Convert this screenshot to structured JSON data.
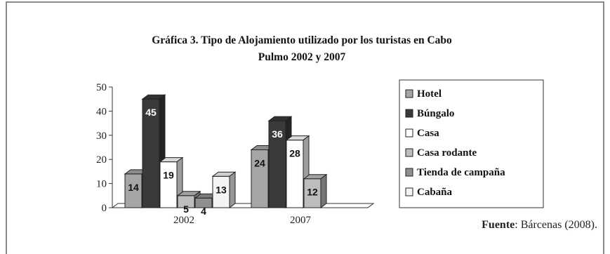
{
  "chart_data": {
    "type": "bar",
    "title_line1": "Gráfica 3. Tipo de Alojamiento utilizado por los turistas en Cabo",
    "title_line2": "Pulmo 2002 y 2007",
    "categories": [
      "2002",
      "2007"
    ],
    "ylim": [
      0,
      50
    ],
    "yticks": [
      0,
      10,
      20,
      30,
      40,
      50
    ],
    "grid": false,
    "legend_position": "right",
    "series": [
      {
        "name": "Hotel",
        "values": [
          14,
          24
        ],
        "color": "#a6a6a6"
      },
      {
        "name": "Búngalo",
        "values": [
          45,
          36
        ],
        "color": "#3a3a3a"
      },
      {
        "name": "Casa",
        "values": [
          19,
          28
        ],
        "color": "#ffffff"
      },
      {
        "name": "Casa rodante",
        "values": [
          5,
          12
        ],
        "color": "#bdbdbd"
      },
      {
        "name": "Tienda de campaña",
        "values": [
          4,
          null
        ],
        "color": "#8f8f8f"
      },
      {
        "name": "Cabaña",
        "values": [
          13,
          null
        ],
        "color": "#f4f4f4"
      }
    ]
  },
  "source": {
    "label": "Fuente",
    "text": ": Bárcenas (2008)."
  }
}
